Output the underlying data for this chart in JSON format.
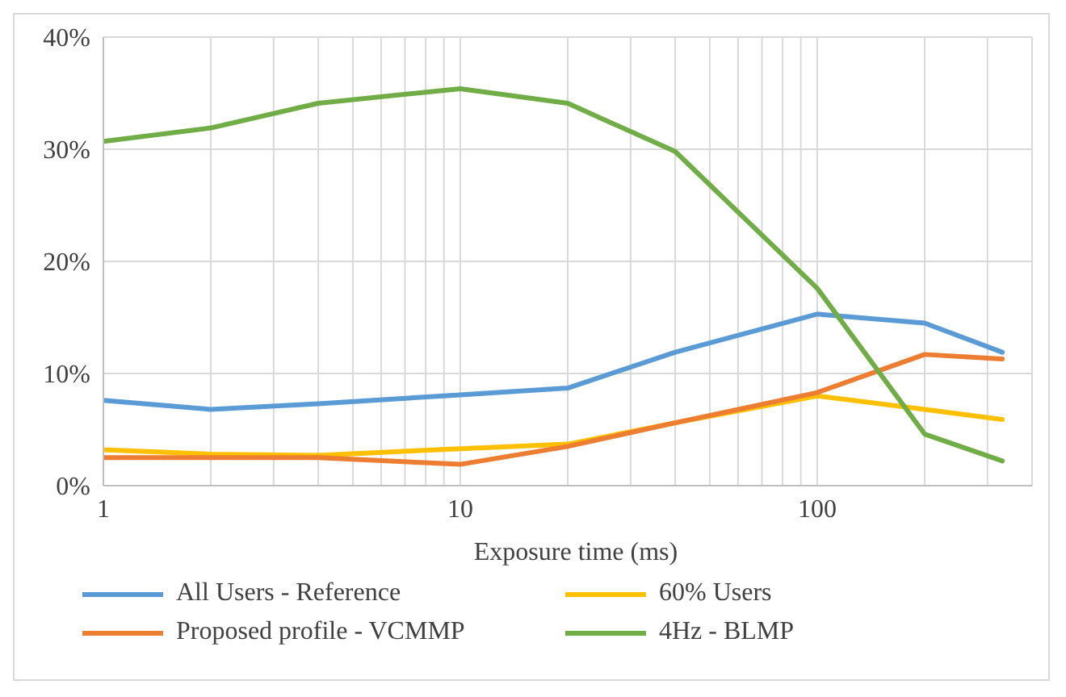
{
  "chart_data": {
    "type": "line",
    "xlabel": "Exposure time (ms)",
    "x": [
      1,
      2,
      4,
      10,
      20,
      40,
      100,
      200,
      330
    ],
    "log": "x",
    "xlim": [
      1,
      400
    ],
    "xticks": [
      1,
      {
        "value": 2,
        "label": null
      },
      {
        "value": 3,
        "label": null
      },
      {
        "value": 4,
        "label": null
      },
      {
        "value": 5,
        "label": null
      },
      {
        "value": 6,
        "label": null
      },
      {
        "value": 7,
        "label": null
      },
      {
        "value": 8,
        "label": null
      },
      {
        "value": 9,
        "label": null
      },
      10,
      {
        "value": 20,
        "label": null
      },
      {
        "value": 30,
        "label": null
      },
      {
        "value": 40,
        "label": null
      },
      {
        "value": 50,
        "label": null
      },
      {
        "value": 60,
        "label": null
      },
      {
        "value": 70,
        "label": null
      },
      {
        "value": 80,
        "label": null
      },
      {
        "value": 90,
        "label": null
      },
      100,
      {
        "value": 200,
        "label": null
      },
      {
        "value": 300,
        "label": null
      },
      {
        "value": 400,
        "label": null
      }
    ],
    "ylim": [
      0,
      40
    ],
    "yticks": [
      {
        "value": 0,
        "label": "0%"
      },
      {
        "value": 10,
        "label": "10%"
      },
      {
        "value": 20,
        "label": "20%"
      },
      {
        "value": 30,
        "label": "30%"
      },
      {
        "value": 40,
        "label": "40%"
      }
    ],
    "grid": true,
    "legend": "bottom",
    "marker": "none",
    "line_style": "solid",
    "series": [
      {
        "name": "All Users - Reference",
        "color": "#5b9bd5",
        "values": [
          7.6,
          6.8,
          7.3,
          8.1,
          8.7,
          11.9,
          15.3,
          14.5,
          11.9
        ]
      },
      {
        "name": "60% Users",
        "color": "#ffc000",
        "values": [
          3.2,
          2.8,
          2.7,
          3.3,
          3.7,
          5.6,
          8.0,
          6.8,
          5.9
        ]
      },
      {
        "name": "Proposed profile - VCMMP",
        "color": "#ed7d31",
        "values": [
          2.5,
          2.5,
          2.5,
          1.9,
          3.5,
          5.6,
          8.3,
          11.7,
          11.3
        ]
      },
      {
        "name": "4Hz - BLMP",
        "color": "#70ad47",
        "values": [
          30.7,
          31.9,
          34.1,
          35.4,
          34.1,
          29.8,
          17.6,
          4.6,
          2.2
        ]
      }
    ]
  }
}
